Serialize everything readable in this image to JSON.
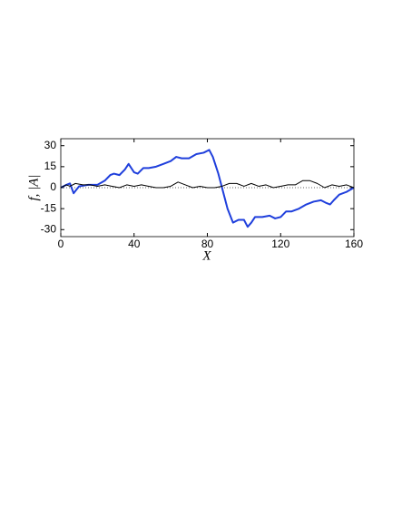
{
  "chart_data": {
    "type": "line",
    "x_label": "X",
    "y_label": "f, |A|",
    "xlim": [
      0,
      160
    ],
    "ylim": [
      -35,
      35
    ],
    "xticks": [
      0,
      40,
      80,
      120,
      160
    ],
    "yticks": [
      -30,
      -15,
      0,
      15,
      30
    ],
    "zero_line": true,
    "series": [
      {
        "color": "#1f3fdc",
        "width": 2,
        "x": [
          0,
          3,
          5,
          7,
          10,
          15,
          20,
          24,
          27,
          29,
          32,
          35,
          37,
          40,
          42,
          45,
          48,
          52,
          56,
          60,
          63,
          66,
          70,
          74,
          78,
          81,
          83,
          86,
          88,
          91,
          94,
          97,
          100,
          102,
          104,
          106,
          110,
          114,
          117,
          120,
          123,
          126,
          130,
          134,
          138,
          142,
          145,
          147,
          149,
          152,
          156,
          160
        ],
        "values": [
          0,
          2,
          3,
          -4,
          1,
          2,
          2,
          5,
          9,
          10,
          9,
          13,
          17,
          11,
          10,
          14,
          14,
          15,
          17,
          19,
          22,
          21,
          21,
          24,
          25,
          27,
          22,
          10,
          0,
          -15,
          -25,
          -23,
          -23,
          -28,
          -25,
          -21,
          -21,
          -20,
          -22,
          -21,
          -17,
          -17,
          -15,
          -12,
          -10,
          -9,
          -11,
          -12,
          -9,
          -5,
          -3,
          0
        ]
      },
      {
        "color": "#000000",
        "width": 1,
        "x": [
          0,
          3,
          5,
          8,
          12,
          16,
          20,
          24,
          28,
          32,
          36,
          40,
          44,
          48,
          52,
          56,
          60,
          64,
          68,
          72,
          76,
          80,
          84,
          88,
          92,
          96,
          100,
          104,
          108,
          112,
          116,
          120,
          124,
          128,
          132,
          136,
          140,
          144,
          148,
          152,
          156,
          160
        ],
        "values": [
          0,
          2,
          1,
          3,
          2,
          2,
          1,
          2,
          1,
          0,
          2,
          1,
          2,
          1,
          0,
          0,
          1,
          4,
          2,
          0,
          1,
          0,
          0,
          1,
          3,
          3,
          1,
          3,
          1,
          2,
          0,
          1,
          2,
          2,
          5,
          5,
          3,
          0,
          2,
          1,
          2,
          0
        ]
      }
    ]
  }
}
